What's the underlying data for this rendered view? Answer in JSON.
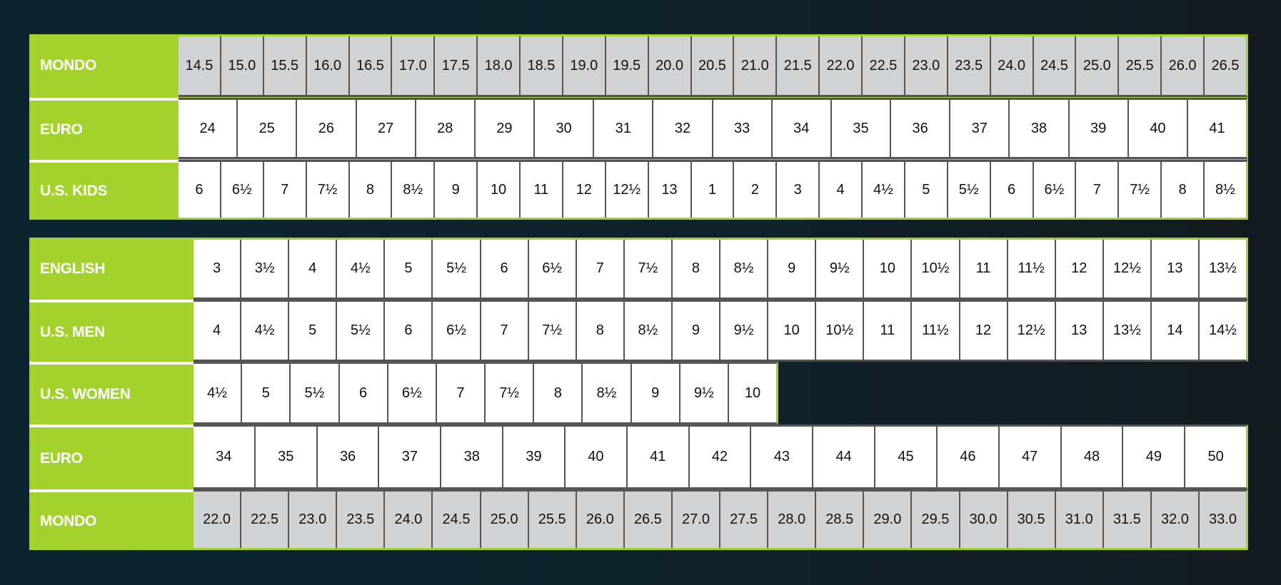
{
  "colors": {
    "accent": "#a4d22c",
    "mondo_bg": "#d1d2d4",
    "cell_bg": "#ffffff",
    "background": "#0b2631"
  },
  "top_table": {
    "rows": [
      {
        "label": "MONDO",
        "shaded": true,
        "values": [
          "14.5",
          "15.0",
          "15.5",
          "16.0",
          "16.5",
          "17.0",
          "17.5",
          "18.0",
          "18.5",
          "19.0",
          "19.5",
          "20.0",
          "20.5",
          "21.0",
          "21.5",
          "22.0",
          "22.5",
          "23.0",
          "23.5",
          "24.0",
          "24.5",
          "25.0",
          "25.5",
          "26.0",
          "26.5"
        ]
      },
      {
        "label": "EURO",
        "shaded": false,
        "values": [
          "24",
          "25",
          "26",
          "27",
          "28",
          "29",
          "30",
          "31",
          "32",
          "33",
          "34",
          "35",
          "36",
          "37",
          "38",
          "39",
          "40",
          "41"
        ]
      },
      {
        "label": "U.S. KIDS",
        "shaded": false,
        "values": [
          "6",
          "6½",
          "7",
          "7½",
          "8",
          "8½",
          "9",
          "10",
          "11",
          "12",
          "12½",
          "13",
          "1",
          "2",
          "3",
          "4",
          "4½",
          "5",
          "5½",
          "6",
          "6½",
          "7",
          "7½",
          "8",
          "8½"
        ]
      }
    ]
  },
  "bottom_table": {
    "rows": [
      {
        "label": "ENGLISH",
        "shaded": false,
        "values": [
          "3",
          "3½",
          "4",
          "4½",
          "5",
          "5½",
          "6",
          "6½",
          "7",
          "7½",
          "8",
          "8½",
          "9",
          "9½",
          "10",
          "10½",
          "11",
          "11½",
          "12",
          "12½",
          "13",
          "13½"
        ]
      },
      {
        "label": "U.S. MEN",
        "shaded": false,
        "values": [
          "4",
          "4½",
          "5",
          "5½",
          "6",
          "6½",
          "7",
          "7½",
          "8",
          "8½",
          "9",
          "9½",
          "10",
          "10½",
          "11",
          "11½",
          "12",
          "12½",
          "13",
          "13½",
          "14",
          "14½"
        ]
      },
      {
        "label": "U.S. WOMEN",
        "shaded": false,
        "values": [
          "4½",
          "5",
          "5½",
          "6",
          "6½",
          "7",
          "7½",
          "8",
          "8½",
          "9",
          "9½",
          "10"
        ]
      },
      {
        "label": "EURO",
        "shaded": false,
        "values": [
          "34",
          "35",
          "36",
          "37",
          "38",
          "39",
          "40",
          "41",
          "42",
          "43",
          "44",
          "45",
          "46",
          "47",
          "48",
          "49",
          "50"
        ]
      },
      {
        "label": "MONDO",
        "shaded": true,
        "values": [
          "22.0",
          "22.5",
          "23.0",
          "23.5",
          "24.0",
          "24.5",
          "25.0",
          "25.5",
          "26.0",
          "26.5",
          "27.0",
          "27.5",
          "28.0",
          "28.5",
          "29.0",
          "29.5",
          "30.0",
          "30.5",
          "31.0",
          "31.5",
          "32.0",
          "33.0"
        ]
      }
    ]
  }
}
